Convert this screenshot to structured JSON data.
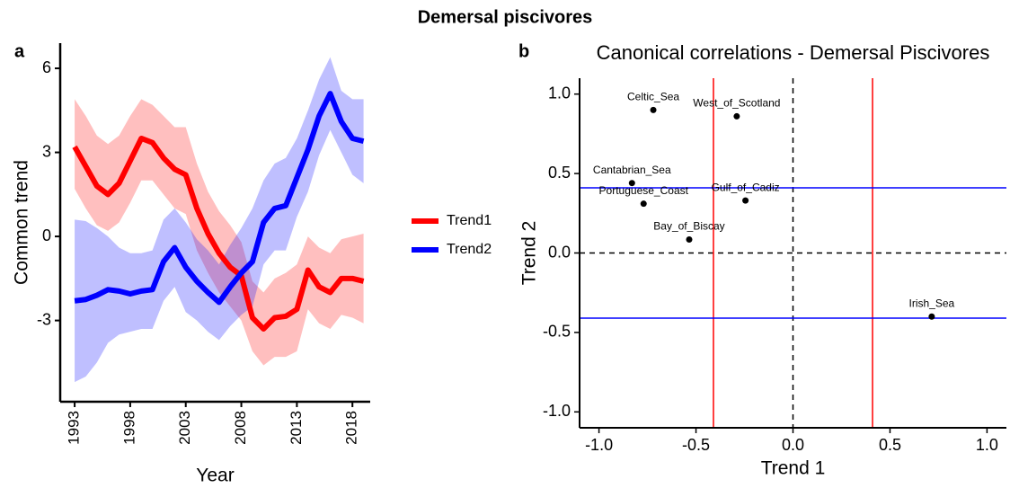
{
  "title": "Demersal piscivores",
  "chart_data": [
    {
      "type": "line",
      "panel": "a",
      "xlabel": "Year",
      "ylabel": "Common trend",
      "x": [
        1993,
        1994,
        1995,
        1996,
        1997,
        1998,
        1999,
        2000,
        2001,
        2002,
        2003,
        2004,
        2005,
        2006,
        2007,
        2008,
        2009,
        2010,
        2011,
        2012,
        2013,
        2014,
        2015,
        2016,
        2017,
        2018,
        2019
      ],
      "series": [
        {
          "name": "Trend1",
          "color": "#ff0000",
          "values": [
            3.2,
            2.5,
            1.8,
            1.5,
            1.9,
            2.7,
            3.5,
            3.35,
            2.8,
            2.4,
            2.2,
            1.0,
            0.1,
            -0.6,
            -1.1,
            -1.4,
            -2.9,
            -3.3,
            -2.9,
            -2.85,
            -2.6,
            -1.2,
            -1.8,
            -2.0,
            -1.5,
            -1.5,
            -1.6
          ],
          "upper": [
            4.9,
            4.3,
            3.6,
            3.3,
            3.6,
            4.3,
            4.9,
            4.7,
            4.3,
            3.9,
            3.9,
            2.6,
            1.6,
            0.9,
            0.4,
            -0.2,
            -1.6,
            -2.0,
            -1.5,
            -1.3,
            -1.0,
            0.0,
            -0.4,
            -0.6,
            -0.1,
            0.0,
            0.1
          ],
          "lower": [
            1.7,
            1.0,
            0.4,
            0.2,
            0.5,
            1.2,
            2.0,
            2.0,
            1.5,
            1.0,
            0.8,
            -0.5,
            -1.3,
            -2.0,
            -2.5,
            -3.0,
            -4.1,
            -4.6,
            -4.3,
            -4.3,
            -4.1,
            -2.6,
            -3.1,
            -3.3,
            -2.8,
            -2.9,
            -3.1
          ]
        },
        {
          "name": "Trend2",
          "color": "#0000ff",
          "values": [
            -2.3,
            -2.25,
            -2.1,
            -1.9,
            -1.95,
            -2.05,
            -1.95,
            -1.9,
            -0.9,
            -0.4,
            -1.1,
            -1.6,
            -2.0,
            -2.35,
            -1.8,
            -1.3,
            -0.9,
            0.5,
            1.0,
            1.1,
            2.1,
            3.1,
            4.3,
            5.1,
            4.1,
            3.5,
            3.4
          ],
          "upper": [
            0.6,
            0.55,
            0.3,
            0.0,
            -0.4,
            -0.6,
            -0.6,
            -0.5,
            0.6,
            1.0,
            0.5,
            -0.1,
            -0.5,
            -1.0,
            -0.3,
            0.3,
            1.0,
            2.0,
            2.6,
            2.8,
            3.5,
            4.5,
            5.6,
            6.4,
            5.2,
            4.9,
            4.9
          ],
          "lower": [
            -5.2,
            -5.0,
            -4.5,
            -3.8,
            -3.5,
            -3.4,
            -3.3,
            -3.3,
            -2.3,
            -1.8,
            -2.7,
            -3.0,
            -3.4,
            -3.7,
            -3.2,
            -2.8,
            -2.5,
            -1.0,
            -0.5,
            -0.5,
            0.7,
            1.6,
            2.9,
            3.8,
            3.0,
            2.2,
            1.9
          ]
        }
      ],
      "xlim": [
        1991.7,
        2019.6
      ],
      "xticks": [
        1993,
        1998,
        2003,
        2008,
        2013,
        2018
      ],
      "ylim": [
        -5.9,
        6.9
      ],
      "yticks": [
        -3,
        0,
        3,
        6
      ],
      "legend": "right"
    },
    {
      "type": "scatter",
      "panel": "b",
      "title": "Canonical correlations - Demersal Piscivores",
      "xlabel": "Trend 1",
      "ylabel": "Trend 2",
      "labels": [
        "Celtic_Sea",
        "West_of_Scotland",
        "Cantabrian_Sea",
        "Portuguese_Coast",
        "Gulf_of_Cadiz",
        "Bay_of_Biscay",
        "Irish_Sea"
      ],
      "x": [
        -0.72,
        -0.29,
        -0.83,
        -0.77,
        -0.245,
        -0.535,
        0.715
      ],
      "values": [
        0.9,
        0.86,
        0.44,
        0.31,
        0.33,
        0.085,
        -0.4
      ],
      "color": "#000000",
      "xlim": [
        -1.1,
        1.1
      ],
      "xticks": [
        {
          "value": -1.0,
          "label": "-1.0"
        },
        {
          "value": -0.5,
          "label": "-0.5"
        },
        {
          "value": 0,
          "label": "0.0"
        },
        {
          "value": 0.5,
          "label": "0.5"
        },
        {
          "value": 1.0,
          "label": "1.0"
        }
      ],
      "ylim": [
        -1.1,
        1.1
      ],
      "yticks": [
        {
          "value": -1.0,
          "label": "-1.0"
        },
        {
          "value": -0.5,
          "label": "-0.5"
        },
        {
          "value": 0,
          "label": "0.0"
        },
        {
          "value": 0.5,
          "label": "0.5"
        },
        {
          "value": 1.0,
          "label": "1.0"
        }
      ],
      "vlines": {
        "values": [
          -0.41,
          0.41
        ],
        "color": "#ff0000"
      },
      "hlines": {
        "values": [
          -0.41,
          0.41
        ],
        "color": "#0000ff"
      },
      "dashed_vlines": [
        0
      ],
      "dashed_hlines": [
        0
      ]
    }
  ]
}
